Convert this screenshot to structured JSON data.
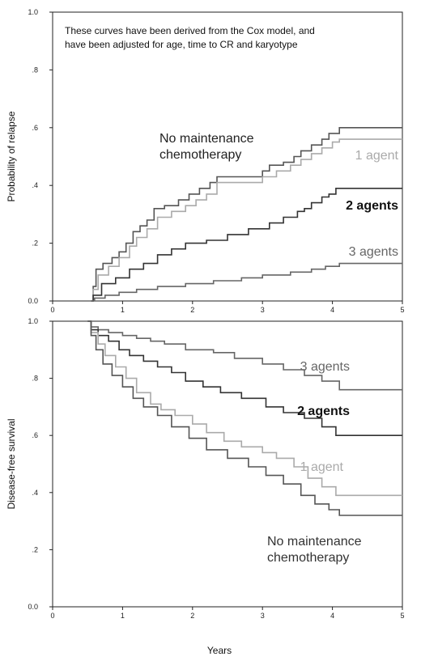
{
  "chart_data": [
    {
      "type": "line",
      "step": true,
      "note": [
        "These curves have been derived from the Cox model, and",
        "have been adjusted for age, time to CR and karyotype"
      ],
      "xlabel": "",
      "ylabel": "Probability of relapse",
      "xlim": [
        0,
        5
      ],
      "ylim": [
        0,
        1
      ],
      "xticks": [
        "0",
        "1",
        "2",
        "3",
        "4",
        "5"
      ],
      "yticks": [
        "0.0",
        ".2",
        ".4",
        ".6",
        ".8",
        "1.0"
      ],
      "grid": false,
      "series": [
        {
          "name": "No maintenance chemotherapy",
          "label_lines": [
            "No maintenance",
            "chemotherapy"
          ],
          "color": "#555555",
          "x": [
            0.55,
            0.58,
            0.62,
            0.72,
            0.85,
            0.95,
            1.05,
            1.15,
            1.25,
            1.35,
            1.45,
            1.6,
            1.8,
            1.95,
            2.1,
            2.25,
            2.35,
            2.7,
            3.0,
            3.1,
            3.3,
            3.45,
            3.55,
            3.7,
            3.85,
            3.95,
            4.1,
            5.0
          ],
          "y": [
            0.0,
            0.05,
            0.11,
            0.13,
            0.15,
            0.17,
            0.2,
            0.24,
            0.26,
            0.28,
            0.32,
            0.33,
            0.35,
            0.37,
            0.39,
            0.41,
            0.43,
            0.43,
            0.45,
            0.47,
            0.48,
            0.5,
            0.52,
            0.54,
            0.56,
            0.58,
            0.6,
            0.6
          ]
        },
        {
          "name": "1 agent",
          "label_lines": [
            "1 agent"
          ],
          "color": "#aaaaaa",
          "x": [
            0.55,
            0.58,
            0.65,
            0.8,
            0.95,
            1.1,
            1.2,
            1.35,
            1.5,
            1.7,
            1.9,
            2.05,
            2.2,
            2.35,
            2.7,
            3.0,
            3.2,
            3.4,
            3.55,
            3.7,
            3.85,
            4.0,
            4.1,
            5.0
          ],
          "y": [
            0.0,
            0.04,
            0.09,
            0.12,
            0.15,
            0.19,
            0.22,
            0.25,
            0.29,
            0.31,
            0.33,
            0.35,
            0.37,
            0.41,
            0.41,
            0.43,
            0.45,
            0.47,
            0.49,
            0.51,
            0.53,
            0.55,
            0.56,
            0.56
          ]
        },
        {
          "name": "2 agents",
          "label_lines": [
            "2 agents"
          ],
          "color": "#333333",
          "x": [
            0.55,
            0.58,
            0.7,
            0.9,
            1.1,
            1.3,
            1.5,
            1.7,
            1.9,
            2.2,
            2.5,
            2.8,
            3.1,
            3.3,
            3.5,
            3.6,
            3.7,
            3.85,
            3.95,
            4.05,
            5.0
          ],
          "y": [
            0.0,
            0.02,
            0.06,
            0.08,
            0.11,
            0.13,
            0.16,
            0.18,
            0.2,
            0.21,
            0.23,
            0.25,
            0.27,
            0.29,
            0.31,
            0.32,
            0.34,
            0.36,
            0.37,
            0.39,
            0.39
          ]
        },
        {
          "name": "3 agents",
          "label_lines": [
            "3 agents"
          ],
          "color": "#666666",
          "x": [
            0.55,
            0.6,
            0.75,
            0.95,
            1.2,
            1.5,
            1.9,
            2.3,
            2.7,
            3.0,
            3.4,
            3.7,
            3.9,
            4.1,
            5.0
          ],
          "y": [
            0.0,
            0.01,
            0.02,
            0.03,
            0.04,
            0.05,
            0.06,
            0.07,
            0.08,
            0.09,
            0.1,
            0.11,
            0.12,
            0.13,
            0.13
          ]
        }
      ]
    },
    {
      "type": "line",
      "step": true,
      "xlabel": "Years",
      "ylabel": "Disease-free survival",
      "xlim": [
        0,
        5
      ],
      "ylim": [
        0,
        1
      ],
      "xticks": [
        "0",
        "1",
        "2",
        "3",
        "4",
        "5"
      ],
      "yticks": [
        "0.0",
        ".2",
        ".4",
        ".6",
        ".8",
        "1.0"
      ],
      "grid": false,
      "series": [
        {
          "name": "3 agents",
          "label_lines": [
            "3 agents"
          ],
          "color": "#666666",
          "x": [
            0.5,
            0.55,
            0.65,
            0.8,
            1.0,
            1.2,
            1.4,
            1.6,
            1.9,
            2.3,
            2.6,
            3.0,
            3.3,
            3.6,
            3.85,
            4.1,
            5.0
          ],
          "y": [
            1.0,
            0.98,
            0.97,
            0.96,
            0.95,
            0.94,
            0.93,
            0.92,
            0.9,
            0.89,
            0.87,
            0.85,
            0.83,
            0.81,
            0.79,
            0.76,
            0.76
          ]
        },
        {
          "name": "2 agents",
          "label_lines": [
            "2 agents"
          ],
          "color": "#333333",
          "x": [
            0.5,
            0.55,
            0.65,
            0.8,
            0.95,
            1.1,
            1.3,
            1.5,
            1.7,
            1.9,
            2.15,
            2.4,
            2.7,
            3.05,
            3.3,
            3.6,
            3.85,
            4.05,
            5.0
          ],
          "y": [
            1.0,
            0.97,
            0.95,
            0.93,
            0.9,
            0.88,
            0.86,
            0.84,
            0.82,
            0.79,
            0.77,
            0.75,
            0.73,
            0.7,
            0.68,
            0.66,
            0.63,
            0.6,
            0.6
          ]
        },
        {
          "name": "1 agent",
          "label_lines": [
            "1 agent"
          ],
          "color": "#aaaaaa",
          "x": [
            0.5,
            0.55,
            0.65,
            0.75,
            0.9,
            1.05,
            1.2,
            1.4,
            1.55,
            1.75,
            2.0,
            2.2,
            2.45,
            2.7,
            3.0,
            3.2,
            3.45,
            3.65,
            3.85,
            4.05,
            5.0
          ],
          "y": [
            1.0,
            0.96,
            0.92,
            0.88,
            0.84,
            0.8,
            0.75,
            0.71,
            0.69,
            0.67,
            0.64,
            0.61,
            0.58,
            0.56,
            0.54,
            0.52,
            0.49,
            0.45,
            0.42,
            0.39,
            0.39
          ]
        },
        {
          "name": "No maintenance chemotherapy",
          "label_lines": [
            "No maintenance",
            "chemotherapy"
          ],
          "color": "#555555",
          "x": [
            0.5,
            0.55,
            0.62,
            0.72,
            0.85,
            1.0,
            1.15,
            1.3,
            1.5,
            1.7,
            1.95,
            2.2,
            2.5,
            2.8,
            3.05,
            3.3,
            3.55,
            3.75,
            3.95,
            4.1,
            5.0
          ],
          "y": [
            1.0,
            0.95,
            0.9,
            0.85,
            0.81,
            0.77,
            0.73,
            0.7,
            0.67,
            0.63,
            0.59,
            0.55,
            0.52,
            0.49,
            0.46,
            0.43,
            0.39,
            0.36,
            0.34,
            0.32,
            0.32
          ]
        }
      ]
    }
  ]
}
